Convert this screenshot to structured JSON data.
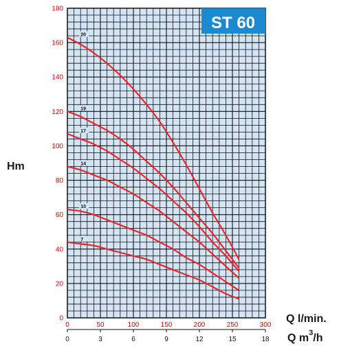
{
  "chart_data": {
    "type": "line",
    "title": "ST 60",
    "ylabel": "Hm",
    "xlabel": "Q l/min.",
    "x2label_main": "Q m",
    "x2label_sup": "3",
    "x2label_tail": "/h",
    "xlim": [
      0,
      300
    ],
    "ylim": [
      0,
      180
    ],
    "x2lim": [
      0,
      18
    ],
    "x_ticks": [
      0,
      50,
      100,
      150,
      200,
      250,
      300
    ],
    "y_ticks": [
      0,
      20,
      40,
      60,
      80,
      100,
      120,
      140,
      160,
      180
    ],
    "x2_ticks": [
      0,
      3,
      6,
      9,
      12,
      15,
      18
    ],
    "grid": true,
    "colors": {
      "curve": "#e8262b",
      "grid": "#111111",
      "plot_bg": "#d3e4f5",
      "title_bg": "#1b8ad0",
      "tick": "#d40000"
    },
    "series": [
      {
        "name": "20",
        "x": [
          0,
          20,
          40,
          60,
          80,
          100,
          120,
          140,
          160,
          180,
          200,
          220,
          240,
          260
        ],
        "y": [
          163,
          159,
          154,
          148,
          141,
          133,
          124,
          114,
          102,
          89,
          75,
          61,
          48,
          34
        ]
      },
      {
        "name": "19",
        "x": [
          0,
          20,
          40,
          60,
          80,
          100,
          120,
          140,
          160,
          180,
          200,
          220,
          240,
          260
        ],
        "y": [
          120,
          117,
          113,
          109,
          104,
          98,
          91,
          84,
          76,
          67,
          58,
          49,
          39,
          29
        ]
      },
      {
        "name": "17",
        "x": [
          0,
          20,
          40,
          60,
          80,
          100,
          120,
          140,
          160,
          180,
          200,
          220,
          240,
          260
        ],
        "y": [
          107,
          104,
          101,
          97,
          92,
          87,
          81,
          75,
          68,
          61,
          53,
          44,
          36,
          27
        ]
      },
      {
        "name": "14",
        "x": [
          0,
          20,
          40,
          60,
          80,
          100,
          120,
          140,
          160,
          180,
          200,
          220,
          240,
          260
        ],
        "y": [
          88,
          86,
          83,
          80,
          76,
          72,
          67,
          62,
          56,
          50,
          44,
          37,
          30,
          23
        ]
      },
      {
        "name": "10",
        "x": [
          0,
          20,
          40,
          60,
          80,
          100,
          120,
          140,
          160,
          180,
          200,
          220,
          240,
          260
        ],
        "y": [
          63,
          62,
          60,
          57,
          54,
          51,
          48,
          44,
          40,
          35,
          31,
          26,
          21,
          16
        ]
      },
      {
        "name": "7",
        "x": [
          0,
          20,
          40,
          60,
          80,
          100,
          120,
          140,
          160,
          180,
          200,
          220,
          240,
          260
        ],
        "y": [
          44,
          43,
          42,
          40,
          38,
          36,
          34,
          31,
          28,
          25,
          22,
          18,
          14,
          11
        ]
      }
    ]
  }
}
